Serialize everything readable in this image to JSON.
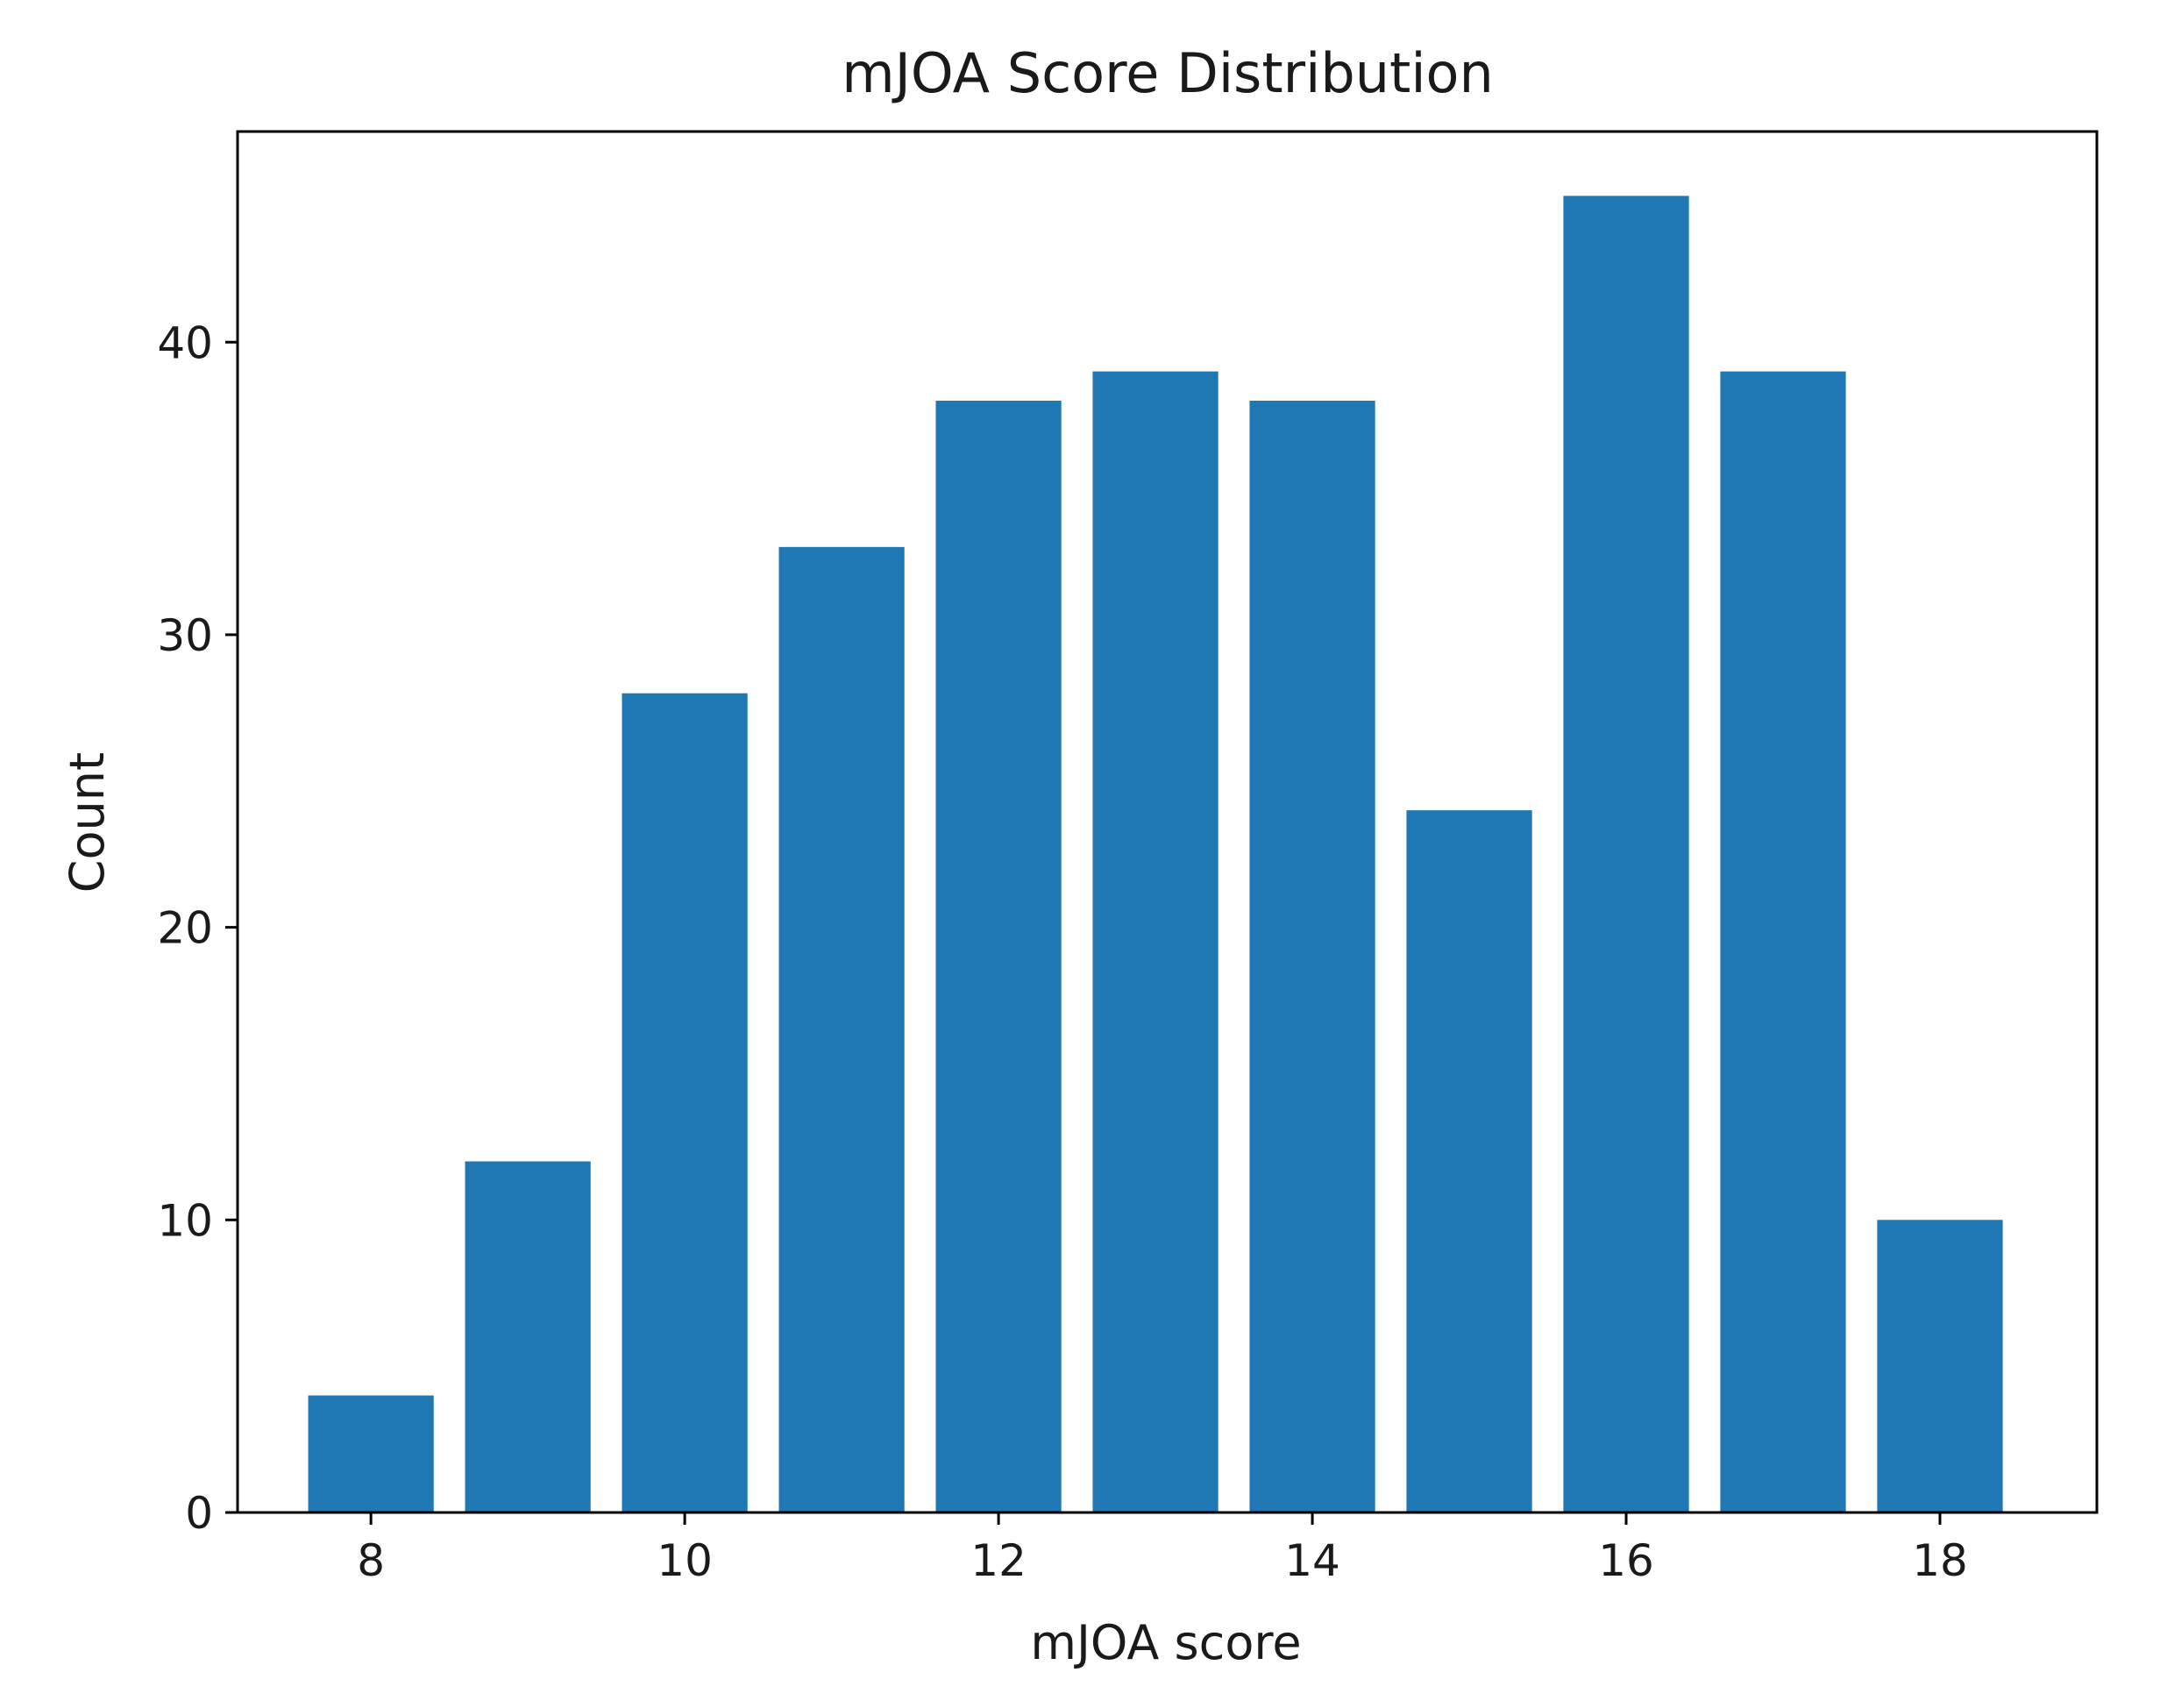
{
  "chart_data": {
    "type": "bar",
    "title": "mJOA Score Distribution",
    "xlabel": "mJOA score",
    "ylabel": "Count",
    "x": [
      8,
      9,
      10,
      11,
      12,
      13,
      14,
      15,
      16,
      17,
      18
    ],
    "values": [
      4,
      12,
      28,
      33,
      38,
      39,
      38,
      24,
      45,
      39,
      10
    ],
    "xlim": [
      7.15,
      19.0
    ],
    "ylim": [
      0,
      47.2
    ],
    "xticks": [
      8,
      10,
      12,
      14,
      16,
      18
    ],
    "yticks": [
      0,
      10,
      20,
      30,
      40
    ],
    "bar_color": "#1f77b4",
    "grid": false,
    "legend": "none"
  }
}
